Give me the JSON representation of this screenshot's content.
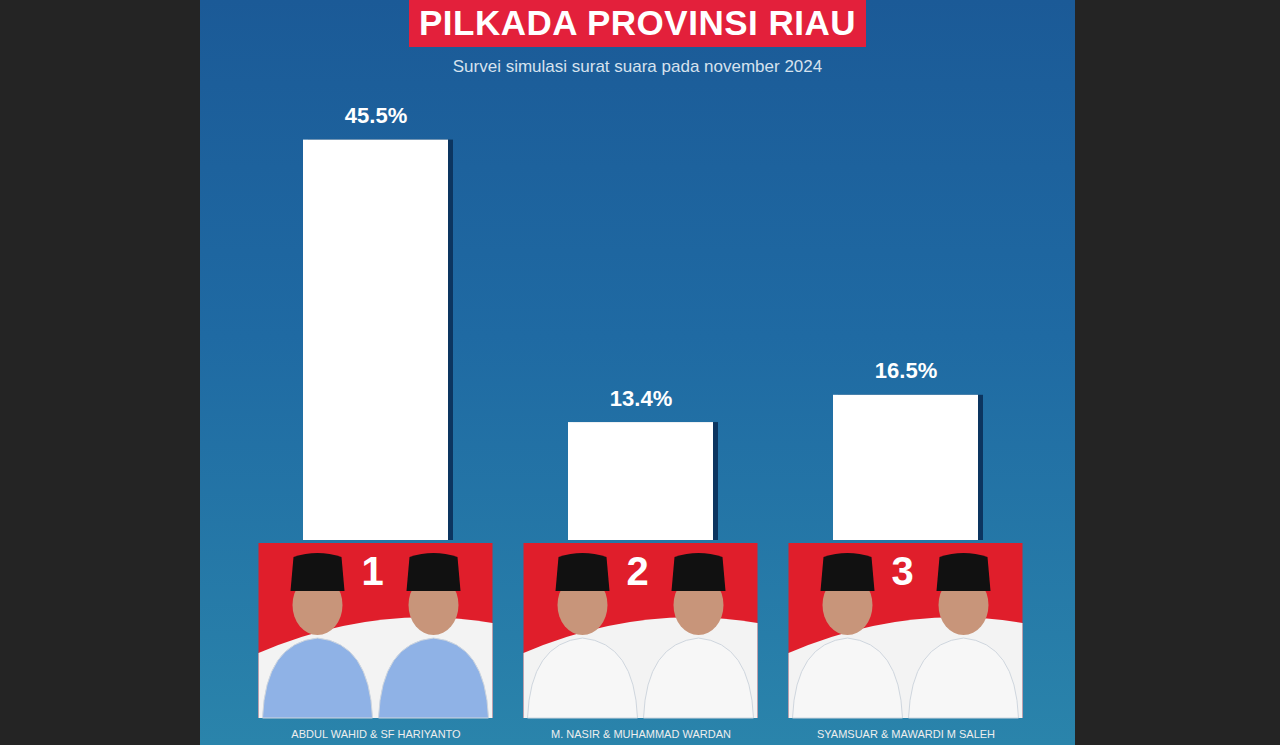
{
  "chart_data": {
    "type": "bar",
    "title": "PILKADA PROVINSI RIAU",
    "subtitle": "Survei simulasi surat suara pada november 2024",
    "categories": [
      "ABDUL WAHID & SF HARIYANTO",
      "M. NASIR & MUHAMMAD WARDAN",
      "SYAMSUAR & MAWARDI M SALEH"
    ],
    "candidate_numbers": [
      1,
      2,
      3
    ],
    "values": [
      45.5,
      13.4,
      16.5
    ],
    "value_labels": [
      "45.5%",
      "13.4%",
      "16.5%"
    ],
    "color": "#ffffff",
    "ylim": [
      0,
      50
    ],
    "data_labels": true,
    "tick_labels": "x",
    "grid": false
  }
}
